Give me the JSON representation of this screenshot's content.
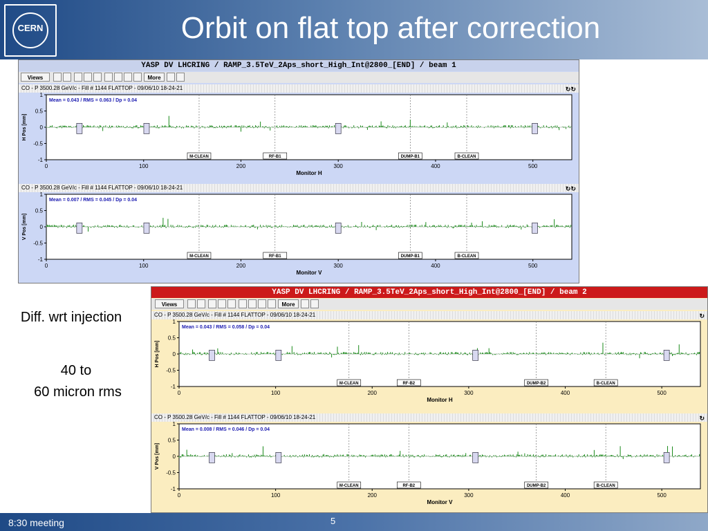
{
  "slide": {
    "title": "Orbit on flat top after correction",
    "logo_text": "CERN",
    "side_text_1": "Diff. wrt injection",
    "side_text_2a": "40 to",
    "side_text_2b": "60 micron rms",
    "footer_left": "8:30 meeting",
    "page_number": "5"
  },
  "window_beam1": {
    "title": "YASP DV LHCRING / RAMP_3.5TeV_2Aps_short_High_Int@2800_[END] / beam 1",
    "title_bg": "#c8d2ec",
    "panel_bg": "#ccd7f5",
    "toolbar": {
      "views_label": "Views",
      "more_label": "More"
    },
    "panels": [
      {
        "header": "CO - P 3500.28 GeV/c - Fill # 1144 FLATTOP - 09/06/10 18-24-21",
        "stats": "Mean =   0.043 / RMS =   0.063 / Dp =   0.04",
        "ylabel": "H Pos [mm]",
        "xlabel": "Monitor H"
      },
      {
        "header": "CO - P 3500.28 GeV/c - Fill # 1144 FLATTOP - 09/06/10 18-24-21",
        "stats": "Mean =   0.007 / RMS =   0.045 / Dp =   0.04",
        "ylabel": "V Pos [mm]",
        "xlabel": "Monitor V"
      }
    ],
    "markers": [
      "M-CLEAN",
      "RF-B1",
      "DUMP-B1",
      "B-CLEAN"
    ]
  },
  "window_beam2": {
    "title": "YASP DV LHCRING / RAMP_3.5TeV_2Aps_short_High_Int@2800_[END] / beam 2",
    "title_bg": "#cc1a1a",
    "panel_bg": "#fbedc0",
    "toolbar": {
      "views_label": "Views",
      "more_label": "More"
    },
    "panels": [
      {
        "header": "CO - P 3500.28 GeV/c - Fill # 1144 FLATTOP - 09/06/10 18-24-21",
        "stats": "Mean =   0.043 / RMS =   0.058 / Dp =   0.04",
        "ylabel": "H Pos [mm]",
        "xlabel": "Monitor H"
      },
      {
        "header": "CO - P 3500.28 GeV/c - Fill # 1144 FLATTOP - 09/06/10 18-24-21",
        "stats": "Mean =   0.008 / RMS =   0.046 / Dp =   0.04",
        "ylabel": "V Pos [mm]",
        "xlabel": "Monitor V"
      }
    ],
    "markers": [
      "M-CLEAN",
      "RF-B2",
      "DUMP-B2",
      "B-CLEAN"
    ]
  },
  "axis": {
    "x_ticks": [
      "0",
      "100",
      "200",
      "300",
      "400",
      "500"
    ],
    "y_ticks": [
      "1",
      "0.5",
      "0",
      "-0.5",
      "-1"
    ]
  }
}
